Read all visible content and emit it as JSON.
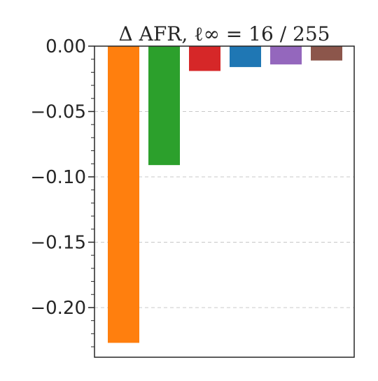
{
  "chart_data": {
    "type": "bar",
    "title": "Δ AFR, ℓ∞ = 16 / 255",
    "xlabel": "",
    "ylabel": "",
    "ylim": [
      -0.238,
      0.0
    ],
    "y_ticks": [
      0.0,
      -0.05,
      -0.1,
      -0.15,
      -0.2
    ],
    "y_tick_labels": [
      "0.00",
      "−0.05",
      "−0.10",
      "−0.15",
      "−0.20"
    ],
    "y_minor_tick_step": 0.01,
    "grid": "horizontal dashed",
    "values": [
      -0.227,
      -0.091,
      -0.019,
      -0.016,
      -0.014,
      -0.011
    ],
    "colors": [
      "#ff7f0e",
      "#2ca02c",
      "#d62728",
      "#1f77b4",
      "#9467bd",
      "#8c564b"
    ]
  }
}
